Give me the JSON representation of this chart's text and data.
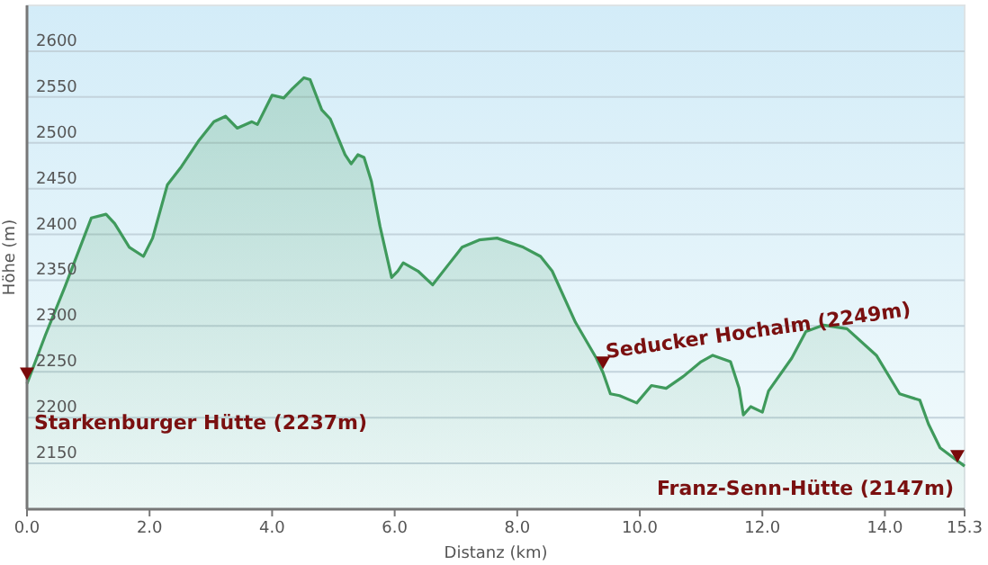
{
  "chart_data": {
    "type": "area",
    "xlabel": "Distanz  (km)",
    "ylabel": "Höhe (m)",
    "x": [
      0,
      0.3,
      0.62,
      1.05,
      1.29,
      1.43,
      1.67,
      1.9,
      2.05,
      2.29,
      2.52,
      2.81,
      3.05,
      3.24,
      3.43,
      3.67,
      3.76,
      4.0,
      4.19,
      4.33,
      4.52,
      4.62,
      4.81,
      4.95,
      5.19,
      5.29,
      5.4,
      5.5,
      5.62,
      5.76,
      5.95,
      6.05,
      6.14,
      6.38,
      6.62,
      6.9,
      7.1,
      7.38,
      7.67,
      8.1,
      8.38,
      8.57,
      8.95,
      9.29,
      9.4,
      9.52,
      9.67,
      9.95,
      10.19,
      10.43,
      10.71,
      11.0,
      11.19,
      11.48,
      11.62,
      11.69,
      11.81,
      12.0,
      12.1,
      12.48,
      12.71,
      13.0,
      13.38,
      13.86,
      14.24,
      14.57,
      14.71,
      14.9,
      15.1,
      15.3
    ],
    "series": [
      {
        "color": "#3f9a5c",
        "values": [
          2237,
          2290,
          2343,
          2418,
          2422,
          2412,
          2386,
          2376,
          2396,
          2454,
          2474,
          2503,
          2523,
          2529,
          2516,
          2523,
          2520,
          2552,
          2549,
          2559,
          2571,
          2569,
          2536,
          2526,
          2487,
          2477,
          2487,
          2484,
          2458,
          2409,
          2353,
          2360,
          2369,
          2360,
          2345,
          2369,
          2386,
          2394,
          2396,
          2386,
          2376,
          2360,
          2304,
          2265,
          2249,
          2226,
          2224,
          2216,
          2235,
          2232,
          2245,
          2261,
          2268,
          2261,
          2232,
          2203,
          2212,
          2206,
          2229,
          2265,
          2294,
          2301,
          2297,
          2268,
          2226,
          2219,
          2193,
          2167,
          2157,
          2147
        ]
      }
    ],
    "xlim": [
      0,
      15.3
    ],
    "ylim": [
      2100,
      2650
    ],
    "xticks": [
      {
        "value": 0,
        "label": "0.0"
      },
      {
        "value": 2,
        "label": "2.0"
      },
      {
        "value": 4,
        "label": "4.0"
      },
      {
        "value": 6,
        "label": "6.0"
      },
      {
        "value": 8,
        "label": "8.0"
      },
      {
        "value": 10,
        "label": "10.0"
      },
      {
        "value": 12,
        "label": "12.0"
      },
      {
        "value": 14,
        "label": "14.0"
      },
      15.3
    ],
    "yticks": [
      2150,
      2200,
      2250,
      2300,
      2350,
      2400,
      2450,
      2500,
      2550,
      2600
    ],
    "grid": "y",
    "annotations": [
      {
        "text": "Starkenburger Hütte (2237m)",
        "x": 0,
        "y": 2237
      },
      {
        "text": "Seducker Hochalm (2249m)",
        "x": 9.4,
        "y": 2249
      },
      {
        "text": "Franz-Senn-Hütte (2147m)",
        "x": 15.3,
        "y": 2147
      }
    ]
  }
}
